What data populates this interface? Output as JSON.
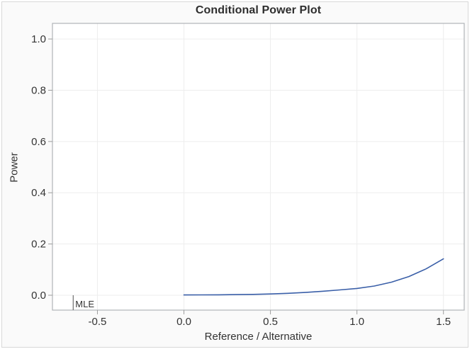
{
  "title": "Conditional Power Plot",
  "colors": {
    "curve": "#3a5fa8",
    "wall": "#ffffff",
    "wall_border": "#b0b3b7",
    "gridline": "#ededed",
    "tick": "#9d9d9d",
    "text": "#333333",
    "frame_bg": "#fafafa",
    "frame_border": "#d8d8d8",
    "annotation_line": "#6e6e6e"
  },
  "chart_data": {
    "type": "line",
    "title": "Conditional Power Plot",
    "xlabel": "Reference / Alternative",
    "ylabel": "Power",
    "grid": true,
    "x_axis": {
      "min": -0.76,
      "max": 1.62,
      "ticks": [
        -0.5,
        0.0,
        0.5,
        1.0,
        1.5
      ],
      "tick_labels": [
        "-0.5",
        "0.0",
        "0.5",
        "1.0",
        "1.5"
      ]
    },
    "y_axis": {
      "min": -0.058,
      "max": 1.061,
      "ticks": [
        0.0,
        0.2,
        0.4,
        0.6,
        0.8,
        1.0
      ],
      "tick_labels": [
        "0.0",
        "0.2",
        "0.4",
        "0.6",
        "0.8",
        "1.0"
      ]
    },
    "series": [
      {
        "name": "conditional-power-curve",
        "color": "#3a5fa8",
        "points": [
          [
            0.0,
            0.001
          ],
          [
            0.1,
            0.0013
          ],
          [
            0.2,
            0.0017
          ],
          [
            0.3,
            0.0024
          ],
          [
            0.4,
            0.0034
          ],
          [
            0.5,
            0.005
          ],
          [
            0.6,
            0.0074
          ],
          [
            0.7,
            0.0108
          ],
          [
            0.8,
            0.0155
          ],
          [
            0.9,
            0.0208
          ],
          [
            1.0,
            0.0265
          ],
          [
            1.1,
            0.036
          ],
          [
            1.2,
            0.051
          ],
          [
            1.3,
            0.073
          ],
          [
            1.4,
            0.103
          ],
          [
            1.5,
            0.142
          ]
        ]
      }
    ],
    "annotations": [
      {
        "type": "reference-tick",
        "label": "MLE",
        "x": -0.64
      }
    ]
  }
}
